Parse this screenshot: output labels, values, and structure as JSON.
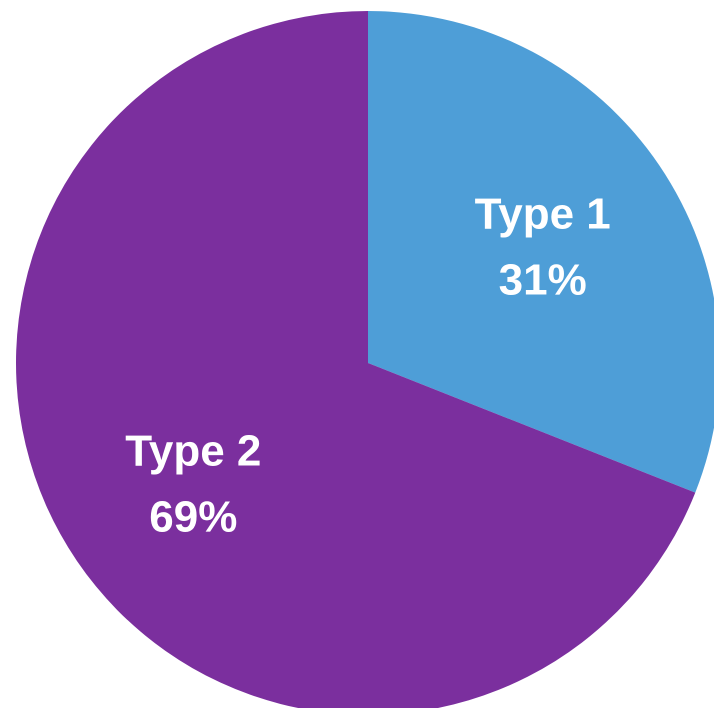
{
  "chart_data": {
    "type": "pie",
    "slices": [
      {
        "name": "Type 1",
        "value": 31,
        "label": "31%",
        "color": "#4E9ED7"
      },
      {
        "name": "Type 2",
        "value": 69,
        "label": "69%",
        "color": "#7B2F9E"
      }
    ],
    "start": "12 o'clock",
    "direction": "clockwise",
    "legend": "none"
  }
}
